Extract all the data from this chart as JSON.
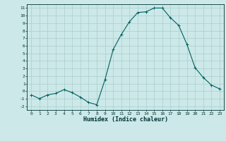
{
  "x": [
    0,
    1,
    2,
    3,
    4,
    5,
    6,
    7,
    8,
    9,
    10,
    11,
    12,
    13,
    14,
    15,
    16,
    17,
    18,
    19,
    20,
    21,
    22,
    23
  ],
  "y": [
    -0.5,
    -1.0,
    -0.5,
    -0.3,
    0.2,
    -0.2,
    -0.8,
    -1.5,
    -1.8,
    1.5,
    5.5,
    7.5,
    9.2,
    10.4,
    10.5,
    11.0,
    11.0,
    9.7,
    8.7,
    6.2,
    3.1,
    1.8,
    0.8,
    0.3
  ],
  "line_color": "#006060",
  "marker": "+",
  "marker_size": 3,
  "bg_color": "#cce8e8",
  "grid_color": "#aacece",
  "xlabel": "Humidex (Indice chaleur)",
  "xlim": [
    -0.5,
    23.5
  ],
  "ylim": [
    -2.5,
    11.5
  ],
  "yticks": [
    -2,
    -1,
    0,
    1,
    2,
    3,
    4,
    5,
    6,
    7,
    8,
    9,
    10,
    11
  ],
  "xticks": [
    0,
    1,
    2,
    3,
    4,
    5,
    6,
    7,
    8,
    9,
    10,
    11,
    12,
    13,
    14,
    15,
    16,
    17,
    18,
    19,
    20,
    21,
    22,
    23
  ],
  "tick_fontsize": 4.5,
  "xlabel_fontsize": 6.0,
  "tick_color": "#003333",
  "spine_color": "#003333",
  "linewidth": 0.8,
  "markeredgewidth": 0.7
}
